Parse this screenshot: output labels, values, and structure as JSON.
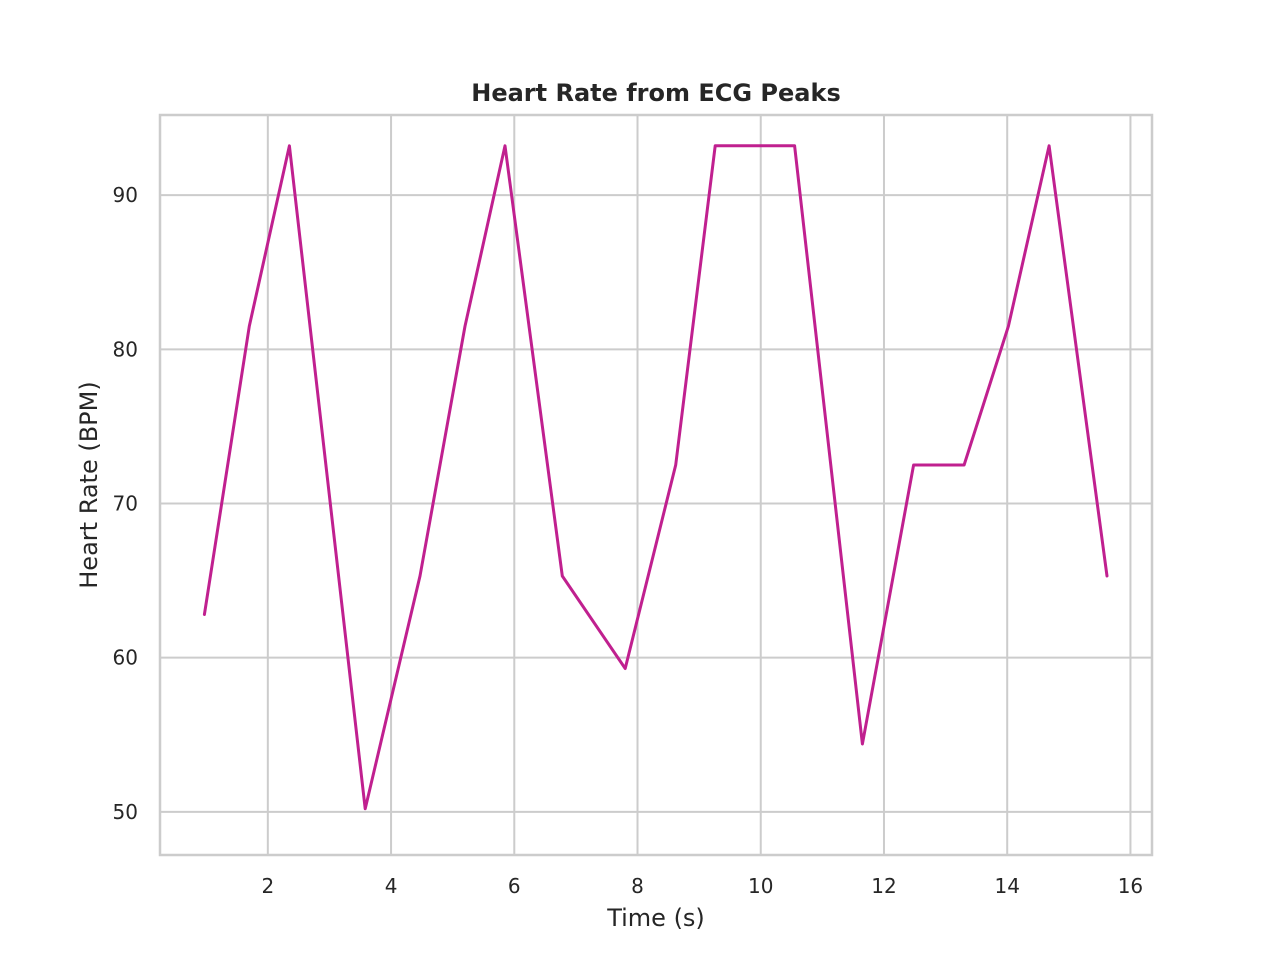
{
  "chart_data": {
    "type": "line",
    "title": "Heart Rate from ECG Peaks",
    "xlabel": "Time (s)",
    "ylabel": "Heart Rate (BPM)",
    "xlim": [
      0.25,
      16.35
    ],
    "ylim": [
      47.2,
      95.2
    ],
    "xticks": [
      2,
      4,
      6,
      8,
      10,
      12,
      14,
      16
    ],
    "yticks": [
      50,
      60,
      70,
      80,
      90
    ],
    "grid": true,
    "legend": "none",
    "series": [
      {
        "color": "#c0208f",
        "x": [
          0.97,
          1.7,
          2.35,
          3.58,
          4.47,
          5.2,
          5.85,
          6.78,
          7.8,
          8.62,
          9.26,
          9.92,
          10.55,
          11.65,
          12.48,
          13.3,
          14.02,
          14.68,
          15.62
        ],
        "y": [
          62.8,
          81.5,
          93.2,
          50.2,
          65.3,
          81.5,
          93.2,
          65.3,
          59.3,
          72.5,
          93.2,
          93.2,
          93.2,
          54.4,
          72.5,
          72.5,
          81.5,
          93.2,
          65.3
        ]
      }
    ]
  }
}
